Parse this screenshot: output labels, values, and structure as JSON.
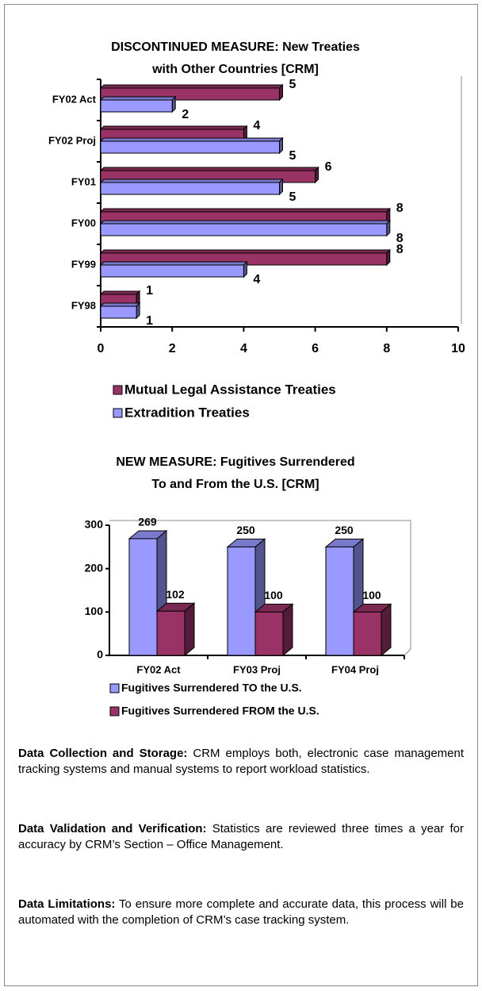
{
  "chart_data": [
    {
      "type": "bar",
      "orientation": "horizontal",
      "title": [
        "DISCONTINUED MEASURE: New Treaties",
        "with Other Countries [CRM]"
      ],
      "categories": [
        "FY02 Act",
        "FY02 Proj",
        "FY01",
        "FY00",
        "FY99",
        "FY98"
      ],
      "series": [
        {
          "name": "Mutual Legal Assistance Treaties",
          "color": "#993366",
          "values": [
            5,
            4,
            6,
            8,
            8,
            1
          ]
        },
        {
          "name": "Extradition Treaties",
          "color": "#9999ff",
          "values": [
            2,
            5,
            5,
            8,
            4,
            1
          ]
        }
      ],
      "xlim": [
        0,
        10
      ],
      "xticks": [
        0,
        2,
        4,
        6,
        8,
        10
      ]
    },
    {
      "type": "bar",
      "orientation": "vertical",
      "title": [
        "NEW MEASURE: Fugitives Surrendered",
        "To and From the U.S. [CRM]"
      ],
      "categories": [
        "FY02 Act",
        "FY03 Proj",
        "FY04 Proj"
      ],
      "series": [
        {
          "name": "Fugitives Surrendered TO the U.S.",
          "color": "#9999ff",
          "values": [
            269,
            250,
            250
          ]
        },
        {
          "name": "Fugitives Surrendered FROM the U.S.",
          "color": "#993366",
          "values": [
            102,
            100,
            100
          ]
        }
      ],
      "ylim": [
        0,
        300
      ],
      "yticks": [
        0,
        100,
        200,
        300
      ]
    }
  ],
  "sections": [
    {
      "label": "Data Collection and Storage:",
      "text": "CRM employs both, electronic case management tracking systems and manual systems to report workload statistics."
    },
    {
      "label": "Data Validation and Verification:",
      "text": "Statistics are reviewed three times a year for accuracy by CRM’s Section – Office Management."
    },
    {
      "label": "Data Limitations:",
      "text": "To ensure more complete and accurate data, this process will be automated with the completion of CRM’s case tracking system."
    }
  ]
}
